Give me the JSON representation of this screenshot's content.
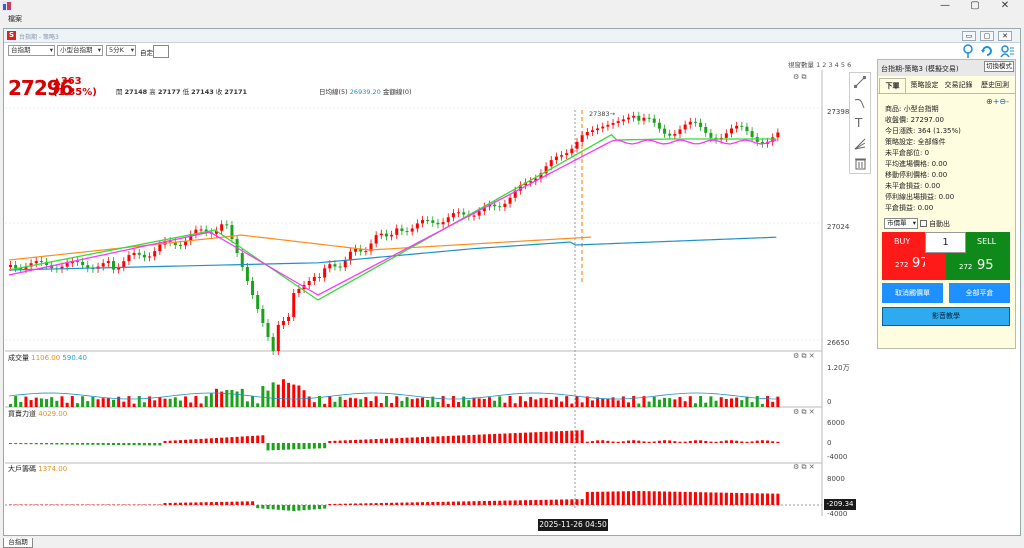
{
  "app": {
    "menu_file": "檔案",
    "window_controls": [
      "—",
      "▢",
      "✕"
    ],
    "inner_title": "台指期 - 策略3",
    "inner_controls": [
      "▭",
      "▢",
      "✕"
    ]
  },
  "toolbar": {
    "product_select": "台指期",
    "contract_select": "小型台指期",
    "interval_select": "5分K",
    "custom_label": "自定:",
    "sets_label": "視窗數量 1 2 3 4 5 6"
  },
  "quote": {
    "price": "27296",
    "change": "▲363",
    "change_pct": "(1.35%)",
    "open_label": "開",
    "open": "27148",
    "high_label": "高",
    "high": "27177",
    "low_label": "低",
    "low": "27143",
    "close_label": "收",
    "close": "27171",
    "avg_label": "日均線(5)",
    "avg_value": "26939.20",
    "amount_label": "金額線(0)"
  },
  "axes": {
    "price_ticks": [
      "27398",
      "27024",
      "26650"
    ],
    "volume_ticks": [
      "1.20万",
      "0"
    ],
    "force_ticks": [
      "6000",
      "0",
      "-4000"
    ],
    "big_ticks": [
      "8000",
      "-209.34",
      "-4000"
    ]
  },
  "annotations": {
    "peak_label": "27383→",
    "time_badge": "2025-11-26  04:50",
    "value_badge": "-209.34"
  },
  "subcharts": {
    "volume": {
      "name": "成交量",
      "v1": "1106.00",
      "v2": "590.40"
    },
    "force": {
      "name": "買賣力道",
      "v1": "4029.00"
    },
    "big": {
      "name": "大戶籌碼",
      "v1": "1374.00"
    }
  },
  "panel": {
    "title": "台指期-策略3 (模擬交易)",
    "switch_label": "切換模式",
    "tabs": [
      "下單",
      "策略設定",
      "交易記錄",
      "歷史回測"
    ],
    "info": [
      "商品: 小型台指期",
      "收盤價: 27297.00",
      "今日漲跌: 364 (1.35%)",
      "策略設定: 全部條件",
      "未平倉部位: 0",
      "平均進場價格: 0.00",
      "移動停利價格: 0.00",
      "未平倉損益: 0.00",
      "停利線出場損益: 0.00",
      "平倉損益: 0.00"
    ],
    "market_select": "市價單",
    "auto_label": "自動出",
    "buy_label": "BUY",
    "sell_label": "SELL",
    "qty": "1",
    "buy_price_prefix": "272",
    "buy_price_suffix": "97",
    "sell_price_prefix": "272",
    "sell_price_suffix": "95",
    "cancel_btn": "取消觸價單",
    "close_all_btn": "全部平倉",
    "tutorial_btn": "影音教學"
  },
  "bottom_tab": "台指期",
  "colors": {
    "up": "#ff0000",
    "down": "#1aa21a",
    "ma_orange": "#ff8c1a",
    "ma_blue": "#1e90c8",
    "stair_green": "#33dd33",
    "stair_magenta": "#ff33ff",
    "buy_bg": "#ff1a1a",
    "sell_bg": "#0f8a1a",
    "accent_blue": "#1e90ff"
  }
}
